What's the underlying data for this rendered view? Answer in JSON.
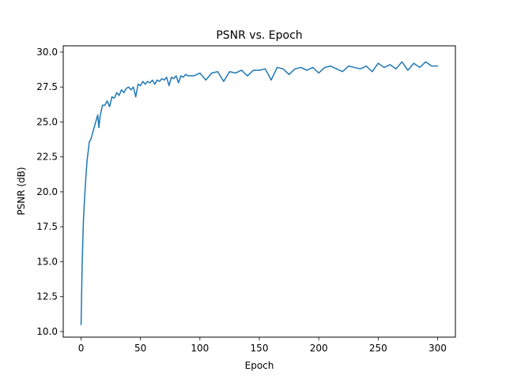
{
  "chart_data": {
    "type": "line",
    "title": "PSNR vs. Epoch",
    "xlabel": "Epoch",
    "ylabel": "PSNR (dB)",
    "xlim": [
      -15,
      315
    ],
    "ylim": [
      9.6,
      30.45
    ],
    "x_ticks": [
      0,
      50,
      100,
      150,
      200,
      250,
      300
    ],
    "x_tick_labels": [
      "0",
      "50",
      "100",
      "150",
      "200",
      "250",
      "300"
    ],
    "y_ticks": [
      10.0,
      12.5,
      15.0,
      17.5,
      20.0,
      22.5,
      25.0,
      27.5,
      30.0
    ],
    "y_tick_labels": [
      "10.0",
      "12.5",
      "15.0",
      "17.5",
      "20.0",
      "22.5",
      "25.0",
      "27.5",
      "30.0"
    ],
    "grid": false,
    "series": [
      {
        "color": "#1f77b4",
        "x": [
          0,
          1,
          2,
          3,
          4,
          5,
          6,
          7,
          8,
          9,
          10,
          12,
          14,
          15,
          16,
          18,
          20,
          22,
          24,
          26,
          28,
          30,
          32,
          34,
          36,
          38,
          40,
          42,
          44,
          46,
          48,
          50,
          52,
          54,
          56,
          58,
          60,
          62,
          64,
          66,
          68,
          70,
          72,
          74,
          76,
          78,
          80,
          82,
          84,
          86,
          88,
          90,
          95,
          100,
          105,
          110,
          115,
          120,
          125,
          130,
          135,
          140,
          145,
          150,
          155,
          160,
          165,
          170,
          175,
          180,
          185,
          190,
          195,
          200,
          205,
          210,
          215,
          220,
          225,
          230,
          235,
          240,
          245,
          250,
          255,
          260,
          265,
          270,
          275,
          280,
          285,
          290,
          295,
          300
        ],
        "y": [
          10.5,
          15.2,
          18.0,
          19.6,
          21.0,
          22.2,
          22.9,
          23.6,
          23.7,
          24.0,
          24.3,
          24.9,
          25.5,
          24.6,
          25.4,
          26.2,
          26.2,
          26.5,
          26.1,
          26.8,
          26.7,
          27.1,
          26.9,
          27.3,
          27.1,
          27.4,
          27.5,
          27.3,
          27.5,
          26.8,
          27.7,
          27.6,
          27.9,
          27.7,
          27.9,
          27.8,
          28.0,
          27.7,
          28.0,
          27.9,
          28.1,
          28.0,
          28.2,
          27.6,
          28.2,
          28.1,
          28.3,
          27.8,
          28.3,
          28.2,
          28.4,
          28.3,
          28.3,
          28.5,
          28.0,
          28.5,
          28.6,
          27.9,
          28.6,
          28.5,
          28.7,
          28.3,
          28.7,
          28.7,
          28.8,
          28.0,
          28.9,
          28.8,
          28.4,
          28.8,
          28.9,
          28.7,
          28.9,
          28.5,
          28.9,
          29.0,
          28.8,
          28.6,
          29.0,
          28.9,
          28.8,
          29.0,
          28.6,
          29.2,
          28.9,
          29.1,
          28.8,
          29.3,
          28.7,
          29.2,
          28.9,
          29.3,
          29.0,
          29.0
        ]
      }
    ]
  }
}
